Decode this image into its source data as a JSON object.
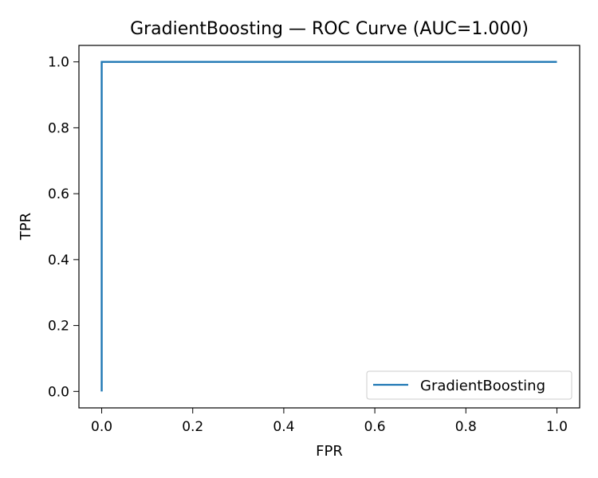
{
  "chart_data": {
    "type": "line",
    "title": "GradientBoosting — ROC Curve (AUC=1.000)",
    "xlabel": "FPR",
    "ylabel": "TPR",
    "xlim": [
      -0.05,
      1.05
    ],
    "ylim": [
      -0.05,
      1.05
    ],
    "xticks": [
      0.0,
      0.2,
      0.4,
      0.6,
      0.8,
      1.0
    ],
    "yticks": [
      0.0,
      0.2,
      0.4,
      0.6,
      0.8,
      1.0
    ],
    "xtick_labels": [
      "0.0",
      "0.2",
      "0.4",
      "0.6",
      "0.8",
      "1.0"
    ],
    "ytick_labels": [
      "0.0",
      "0.2",
      "0.4",
      "0.6",
      "0.8",
      "1.0"
    ],
    "grid": false,
    "legend_position": "bottom-right",
    "series": [
      {
        "name": "GradientBoosting",
        "color": "#1f77b4",
        "x": [
          0.0,
          0.0,
          1.0
        ],
        "y": [
          0.0,
          1.0,
          1.0
        ]
      }
    ]
  }
}
